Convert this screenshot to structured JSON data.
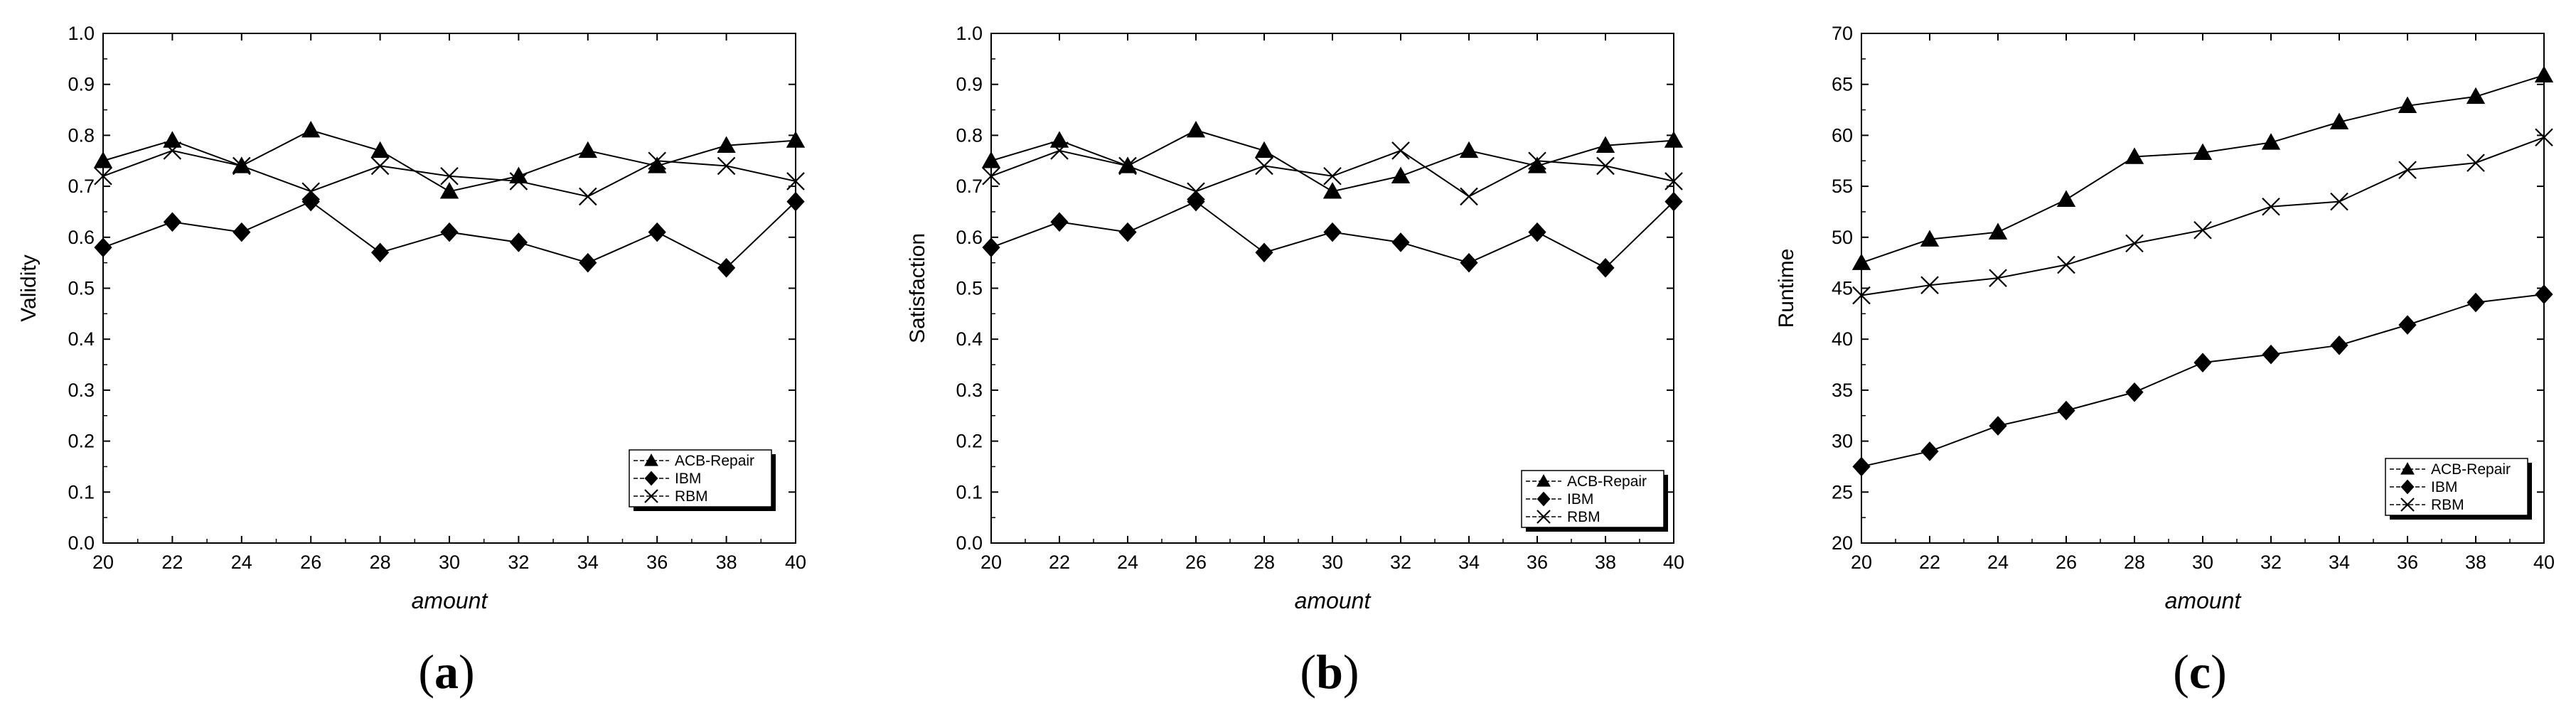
{
  "chart_data": [
    {
      "type": "line",
      "panel": {
        "open": "(",
        "letter": "a",
        "close": ")"
      },
      "xlabel": "amount",
      "ylabel": "Validity",
      "xlim": [
        20,
        40
      ],
      "ylim": [
        0.0,
        1.0
      ],
      "x": [
        20,
        22,
        24,
        26,
        28,
        30,
        32,
        34,
        36,
        38,
        40
      ],
      "xticks": [
        "20",
        "22",
        "24",
        "26",
        "28",
        "30",
        "32",
        "34",
        "36",
        "38",
        "40"
      ],
      "yticks": [
        0.0,
        0.1,
        0.2,
        0.3,
        0.4,
        0.5,
        0.6,
        0.7,
        0.8,
        0.9,
        1.0
      ],
      "ytick_labels": [
        "0.0",
        "0.1",
        "0.2",
        "0.3",
        "0.4",
        "0.5",
        "0.6",
        "0.7",
        "0.8",
        "0.9",
        "1.0"
      ],
      "grid": false,
      "legend": "bottom-right",
      "series": [
        {
          "name": "ACB-Repair",
          "marker": "triangle",
          "values": [
            0.75,
            0.79,
            0.74,
            0.81,
            0.77,
            0.69,
            0.72,
            0.77,
            0.74,
            0.78,
            0.79
          ]
        },
        {
          "name": "IBM",
          "marker": "diamond",
          "values": [
            0.58,
            0.63,
            0.61,
            0.67,
            0.57,
            0.61,
            0.59,
            0.55,
            0.61,
            0.54,
            0.67
          ]
        },
        {
          "name": "RBM",
          "marker": "x",
          "values": [
            0.72,
            0.77,
            0.74,
            0.69,
            0.74,
            0.72,
            0.71,
            0.68,
            0.75,
            0.74,
            0.71
          ]
        }
      ]
    },
    {
      "type": "line",
      "panel": {
        "open": "(",
        "letter": "b",
        "close": ")"
      },
      "xlabel": "amount",
      "ylabel": "Satisfaction",
      "xlim": [
        20,
        40
      ],
      "ylim": [
        0.0,
        1.0
      ],
      "x": [
        20,
        22,
        24,
        26,
        28,
        30,
        32,
        34,
        36,
        38,
        40
      ],
      "xticks": [
        "20",
        "22",
        "24",
        "26",
        "28",
        "30",
        "32",
        "34",
        "36",
        "38",
        "40"
      ],
      "yticks": [
        0.0,
        0.1,
        0.2,
        0.3,
        0.4,
        0.5,
        0.6,
        0.7,
        0.8,
        0.9,
        1.0
      ],
      "ytick_labels": [
        "0.0",
        "0.1",
        "0.2",
        "0.3",
        "0.4",
        "0.5",
        "0.6",
        "0.7",
        "0.8",
        "0.9",
        "1.0"
      ],
      "grid": false,
      "legend": "bottom-right",
      "series": [
        {
          "name": "ACB-Repair",
          "marker": "triangle",
          "values": [
            0.75,
            0.79,
            0.74,
            0.81,
            0.77,
            0.69,
            0.72,
            0.77,
            0.74,
            0.78,
            0.79
          ]
        },
        {
          "name": "IBM",
          "marker": "diamond",
          "values": [
            0.58,
            0.63,
            0.61,
            0.67,
            0.57,
            0.61,
            0.59,
            0.55,
            0.61,
            0.54,
            0.67
          ]
        },
        {
          "name": "RBM",
          "marker": "x",
          "values": [
            0.72,
            0.77,
            0.74,
            0.69,
            0.74,
            0.72,
            0.77,
            0.68,
            0.75,
            0.74,
            0.71
          ]
        }
      ]
    },
    {
      "type": "line",
      "panel": {
        "open": "(",
        "letter": "c",
        "close": ")"
      },
      "xlabel": "amount",
      "ylabel": "Runtime",
      "xlim": [
        20,
        40
      ],
      "ylim": [
        20,
        70
      ],
      "x": [
        20,
        22,
        24,
        26,
        28,
        30,
        32,
        34,
        36,
        38,
        40
      ],
      "xticks": [
        "20",
        "22",
        "24",
        "26",
        "28",
        "30",
        "32",
        "34",
        "36",
        "38",
        "40"
      ],
      "yticks": [
        20,
        25,
        30,
        35,
        40,
        45,
        50,
        55,
        60,
        65,
        70
      ],
      "ytick_labels": [
        "20",
        "25",
        "30",
        "35",
        "40",
        "45",
        "50",
        "55",
        "60",
        "65",
        "70"
      ],
      "grid": false,
      "legend": "bottom-right",
      "series": [
        {
          "name": "ACB-Repair",
          "marker": "triangle",
          "values": [
            47.5,
            49.8,
            50.5,
            53.7,
            57.9,
            58.3,
            59.3,
            61.3,
            62.9,
            63.8,
            65.9
          ]
        },
        {
          "name": "IBM",
          "marker": "diamond",
          "values": [
            27.5,
            29.0,
            31.5,
            33.0,
            34.8,
            37.7,
            38.5,
            39.4,
            41.4,
            43.6,
            44.4
          ]
        },
        {
          "name": "RBM",
          "marker": "x",
          "values": [
            44.3,
            45.3,
            46.0,
            47.3,
            49.4,
            50.7,
            53.0,
            53.5,
            56.6,
            57.3,
            59.8
          ]
        }
      ]
    }
  ]
}
